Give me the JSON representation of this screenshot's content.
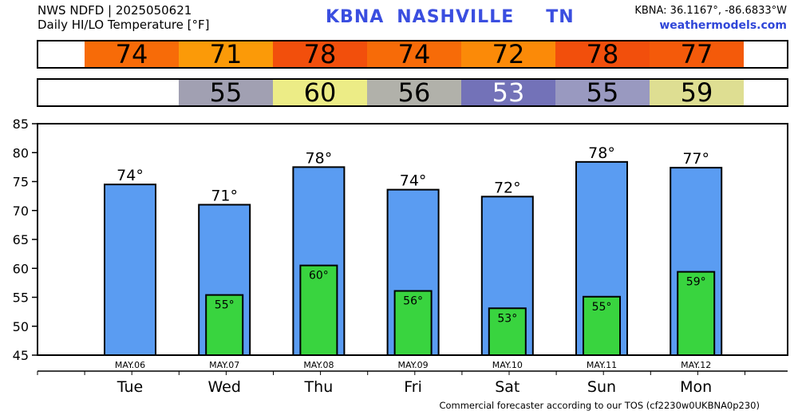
{
  "header": {
    "line1": "NWS NDFD | 2025050621",
    "line2": "Daily HI/LO Temperature [°F]",
    "station": "KBNA",
    "city": "NASHVILLE",
    "state": "TN",
    "coords": "KBNA: 36.1167°, -86.6833°W",
    "site": "weathermodels.com"
  },
  "strips": {
    "hi": [
      {
        "label": "74",
        "color": "#f76b08"
      },
      {
        "label": "71",
        "color": "#fb9a08"
      },
      {
        "label": "78",
        "color": "#f24f0c"
      },
      {
        "label": "74",
        "color": "#f76b08"
      },
      {
        "label": "72",
        "color": "#fb8a08"
      },
      {
        "label": "78",
        "color": "#f24f0c"
      },
      {
        "label": "77",
        "color": "#f45a0a"
      }
    ],
    "lo": [
      {
        "label": "",
        "color": "#ffffff",
        "text_color": "#000000"
      },
      {
        "label": "55",
        "color": "#a1a0b2",
        "text_color": "#000000"
      },
      {
        "label": "60",
        "color": "#ecec86",
        "text_color": "#000000"
      },
      {
        "label": "56",
        "color": "#b1b1aa",
        "text_color": "#000000"
      },
      {
        "label": "53",
        "color": "#7372b8",
        "text_color": "#ffffff"
      },
      {
        "label": "55",
        "color": "#9999c0",
        "text_color": "#000000"
      },
      {
        "label": "59",
        "color": "#dede92",
        "text_color": "#000000"
      }
    ]
  },
  "chart_data": {
    "type": "bar",
    "categories": [
      "Tue",
      "Wed",
      "Thu",
      "Fri",
      "Sat",
      "Sun",
      "Mon"
    ],
    "dates": [
      "MAY.06",
      "MAY.07",
      "MAY.08",
      "MAY.09",
      "MAY.10",
      "MAY.11",
      "MAY.12"
    ],
    "series": [
      {
        "values": [
          74.5,
          71,
          77.5,
          73.6,
          72.4,
          78.4,
          77.4
        ],
        "labels": [
          "74°",
          "71°",
          "78°",
          "74°",
          "72°",
          "78°",
          "77°"
        ],
        "color": "#5a9cf2"
      },
      {
        "values": [
          null,
          55.4,
          60.5,
          56.1,
          53.1,
          55.1,
          59.4
        ],
        "labels": [
          "",
          "55°",
          "60°",
          "56°",
          "53°",
          "55°",
          "59°"
        ],
        "color": "#39d43f"
      }
    ],
    "ylim": [
      45,
      85
    ],
    "yticks": [
      "45",
      "50",
      "55",
      "60",
      "65",
      "70",
      "75",
      "80",
      "85"
    ],
    "grid": false
  },
  "footer": "Commercial forecaster according to our TOS (cf2230w0UKBNA0p230)"
}
